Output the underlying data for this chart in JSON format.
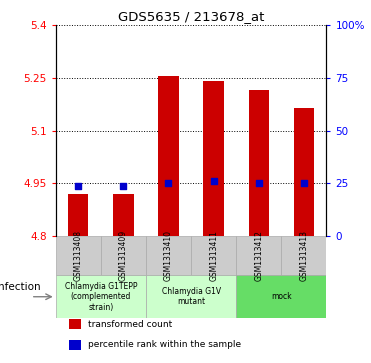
{
  "title": "GDS5635 / 213678_at",
  "samples": [
    "GSM1313408",
    "GSM1313409",
    "GSM1313410",
    "GSM1313411",
    "GSM1313412",
    "GSM1313413"
  ],
  "transformed_counts": [
    4.918,
    4.918,
    5.255,
    5.24,
    5.215,
    5.163
  ],
  "percentile_ranks": [
    4.943,
    4.942,
    4.95,
    4.957,
    4.95,
    4.95
  ],
  "ylim": [
    4.8,
    5.4
  ],
  "yticks": [
    4.8,
    4.95,
    5.1,
    5.25,
    5.4
  ],
  "ytick_labels": [
    "4.8",
    "4.95",
    "5.1",
    "5.25",
    "5.4"
  ],
  "right_yticks_pct": [
    0,
    25,
    50,
    75,
    100
  ],
  "right_ytick_labels": [
    "0",
    "25",
    "50",
    "75",
    "100%"
  ],
  "bar_color": "#cc0000",
  "dot_color": "#0000cc",
  "bar_bottom": 4.8,
  "group_configs": [
    {
      "indices": [
        0,
        1
      ],
      "label": "Chlamydia G1TEPP\n(complemented\nstrain)",
      "color": "#ccffcc"
    },
    {
      "indices": [
        2,
        3
      ],
      "label": "Chlamydia G1V\nmutant",
      "color": "#ccffcc"
    },
    {
      "indices": [
        4,
        5
      ],
      "label": "mock",
      "color": "#66dd66"
    }
  ],
  "infection_label": "infection",
  "legend_labels": [
    "transformed count",
    "percentile rank within the sample"
  ],
  "legend_colors": [
    "#cc0000",
    "#0000cc"
  ]
}
